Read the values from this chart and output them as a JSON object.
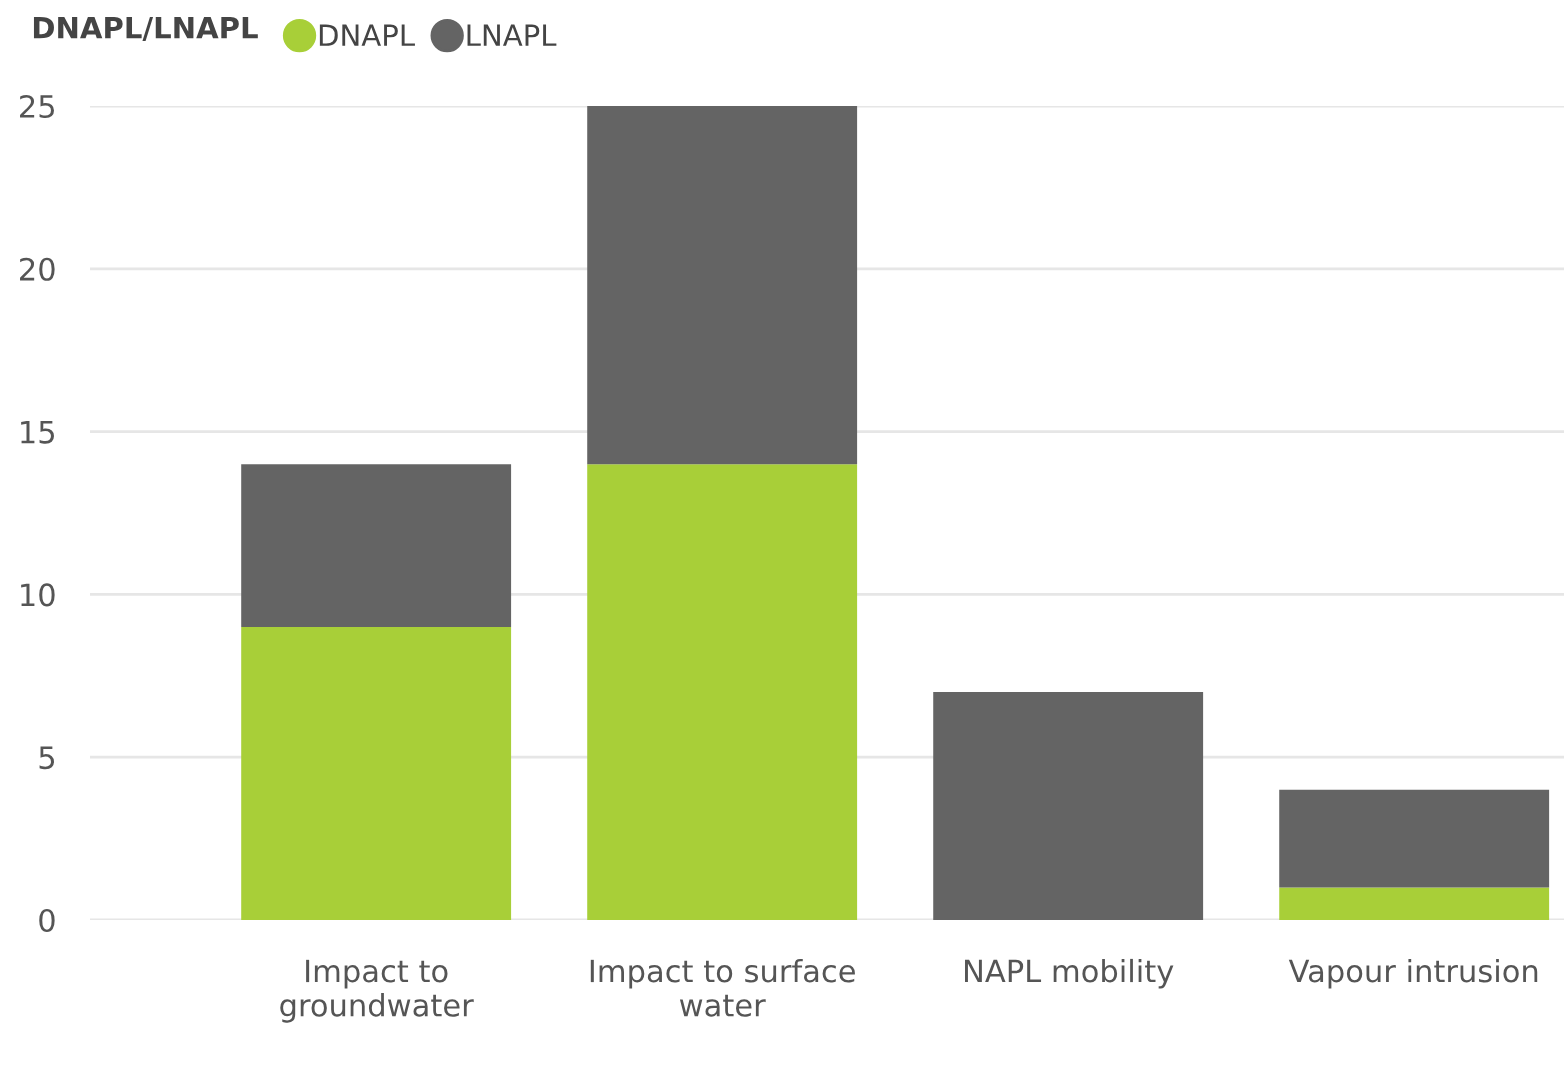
{
  "chart_data": {
    "type": "bar",
    "stacked": true,
    "legend_title": "DNAPL/LNAPL",
    "legend": "top left",
    "grid": "y",
    "categories": [
      "Impact to groundwater",
      "Impact to surface water",
      "NAPL mobility",
      "Vapour intrusion"
    ],
    "series": [
      {
        "name": "DNAPL",
        "color": "#a8cf38",
        "values": [
          9,
          14,
          0,
          1
        ]
      },
      {
        "name": "LNAPL",
        "color": "#646464",
        "values": [
          5,
          11,
          7,
          3
        ]
      }
    ],
    "ylim": [
      0,
      25
    ],
    "yticks": [
      0,
      5,
      10,
      15,
      20,
      25
    ]
  }
}
